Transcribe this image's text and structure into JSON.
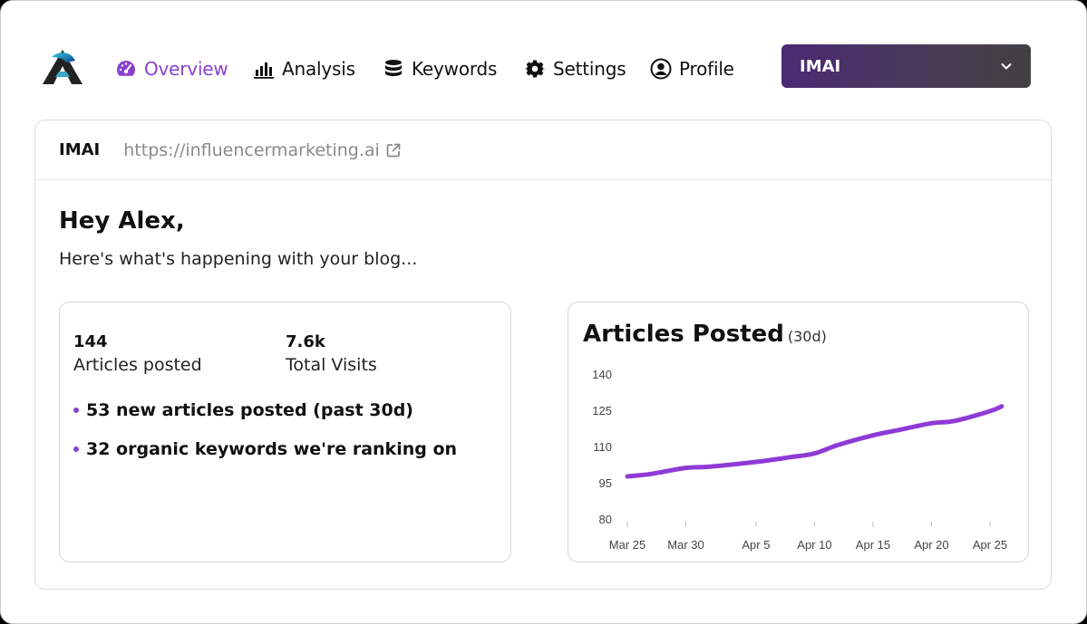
{
  "brand": {
    "logo_icon": "triangle-a-logo"
  },
  "nav": [
    {
      "label": "Overview",
      "icon": "dashboard-gauge-icon",
      "active": true
    },
    {
      "label": "Analysis",
      "icon": "bar-chart-icon",
      "active": false
    },
    {
      "label": "Keywords",
      "icon": "database-icon",
      "active": false
    },
    {
      "label": "Settings",
      "icon": "gear-icon",
      "active": false
    },
    {
      "label": "Profile",
      "icon": "user-circle-icon",
      "active": false
    }
  ],
  "site_select": {
    "value": "IMAI"
  },
  "site": {
    "name": "IMAI",
    "url": "https://influencermarketing.ai"
  },
  "greeting": "Hey Alex,",
  "subtitle": "Here's what's happening with your blog...",
  "stats": {
    "articles": {
      "value": "144",
      "label": "Articles posted"
    },
    "visits": {
      "value": "7.6k",
      "label": "Total Visits"
    },
    "bullets": [
      "53 new articles posted (past 30d)",
      "32 organic keywords we're ranking on"
    ]
  },
  "colors": {
    "accent": "#8a3fd1",
    "line": "#8e3bd6"
  },
  "chart": {
    "title": "Articles Posted",
    "period": "(30d)"
  },
  "chart_data": {
    "type": "line",
    "title": "Articles Posted",
    "subtitle": "(30d)",
    "x_ticks": [
      "Mar 25",
      "Mar 30",
      "Apr 5",
      "Apr 10",
      "Apr 15",
      "Apr 20",
      "Apr 25"
    ],
    "y_ticks": [
      140,
      125,
      110,
      95,
      80
    ],
    "ylim": [
      80,
      140
    ],
    "series": [
      {
        "x": [
          "Mar 25",
          "Mar 27",
          "Mar 30",
          "Apr 1",
          "Apr 5",
          "Apr 8",
          "Apr 10",
          "Apr 12",
          "Apr 15",
          "Apr 17",
          "Apr 20",
          "Apr 22",
          "Apr 25",
          "Apr 26"
        ],
        "values": [
          98,
          99,
          101.5,
          102,
          104,
          106,
          107.5,
          111,
          115,
          117,
          120,
          121,
          125,
          127
        ]
      }
    ],
    "grid": false
  }
}
